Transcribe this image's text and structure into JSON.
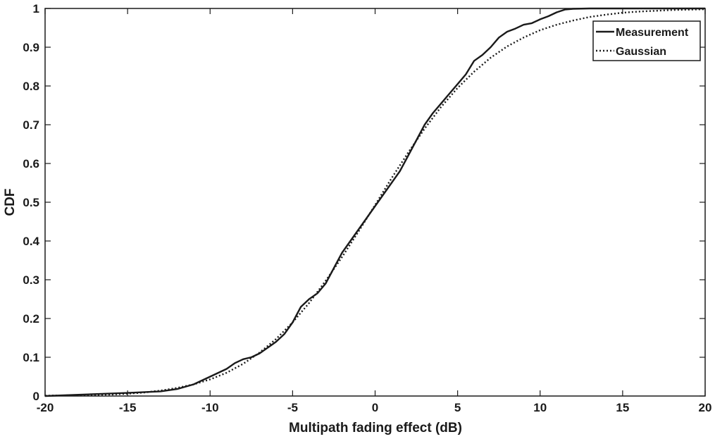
{
  "chart_data": {
    "type": "line",
    "title": "",
    "xlabel": "Multipath fading effect (dB)",
    "ylabel": "CDF",
    "xlim": [
      -20,
      20
    ],
    "ylim": [
      0,
      1
    ],
    "xticks": [
      -20,
      -15,
      -10,
      -5,
      0,
      5,
      10,
      15,
      20
    ],
    "yticks": [
      0,
      0.1,
      0.2,
      0.3,
      0.4,
      0.5,
      0.6,
      0.7,
      0.8,
      0.9,
      1
    ],
    "grid": false,
    "legend_position": "top-right",
    "series": [
      {
        "name": "Measurement",
        "style": "solid",
        "x": [
          -20,
          -17,
          -15,
          -13,
          -12,
          -11,
          -10.5,
          -10,
          -9,
          -8.5,
          -8,
          -7.5,
          -7,
          -6.5,
          -6,
          -5.5,
          -5,
          -4.5,
          -4,
          -3.5,
          -3,
          -2.5,
          -2,
          -1.5,
          -1,
          -0.5,
          0,
          0.5,
          1,
          1.5,
          2,
          2.5,
          3,
          3.5,
          4,
          4.5,
          5,
          5.5,
          6,
          6.5,
          7,
          7.5,
          8,
          8.5,
          9,
          9.5,
          10,
          10.5,
          11,
          11.5,
          12,
          13,
          15,
          20
        ],
        "y": [
          0.0,
          0.005,
          0.008,
          0.012,
          0.018,
          0.03,
          0.04,
          0.05,
          0.07,
          0.085,
          0.095,
          0.1,
          0.11,
          0.125,
          0.14,
          0.16,
          0.19,
          0.23,
          0.25,
          0.265,
          0.29,
          0.33,
          0.37,
          0.4,
          0.43,
          0.46,
          0.49,
          0.52,
          0.55,
          0.58,
          0.62,
          0.66,
          0.7,
          0.73,
          0.755,
          0.78,
          0.805,
          0.83,
          0.865,
          0.88,
          0.9,
          0.925,
          0.94,
          0.948,
          0.958,
          0.962,
          0.972,
          0.98,
          0.99,
          0.997,
          0.999,
          1.0,
          1.0,
          1.0
        ]
      },
      {
        "name": "Gaussian",
        "style": "dotted",
        "x": [
          -20,
          -18,
          -16,
          -15,
          -14,
          -13,
          -12,
          -11,
          -10,
          -9,
          -8,
          -7,
          -6,
          -5,
          -4,
          -3,
          -2,
          -1,
          0,
          1,
          2,
          3,
          4,
          5,
          6,
          7,
          8,
          9,
          10,
          11,
          12,
          13,
          14,
          15,
          16,
          18,
          20
        ],
        "y": [
          0.001,
          0.002,
          0.004,
          0.006,
          0.009,
          0.014,
          0.021,
          0.03,
          0.043,
          0.06,
          0.083,
          0.112,
          0.147,
          0.19,
          0.24,
          0.297,
          0.359,
          0.425,
          0.493,
          0.562,
          0.628,
          0.69,
          0.746,
          0.795,
          0.837,
          0.873,
          0.902,
          0.925,
          0.944,
          0.958,
          0.969,
          0.978,
          0.984,
          0.989,
          0.992,
          0.996,
          0.998
        ]
      }
    ]
  }
}
